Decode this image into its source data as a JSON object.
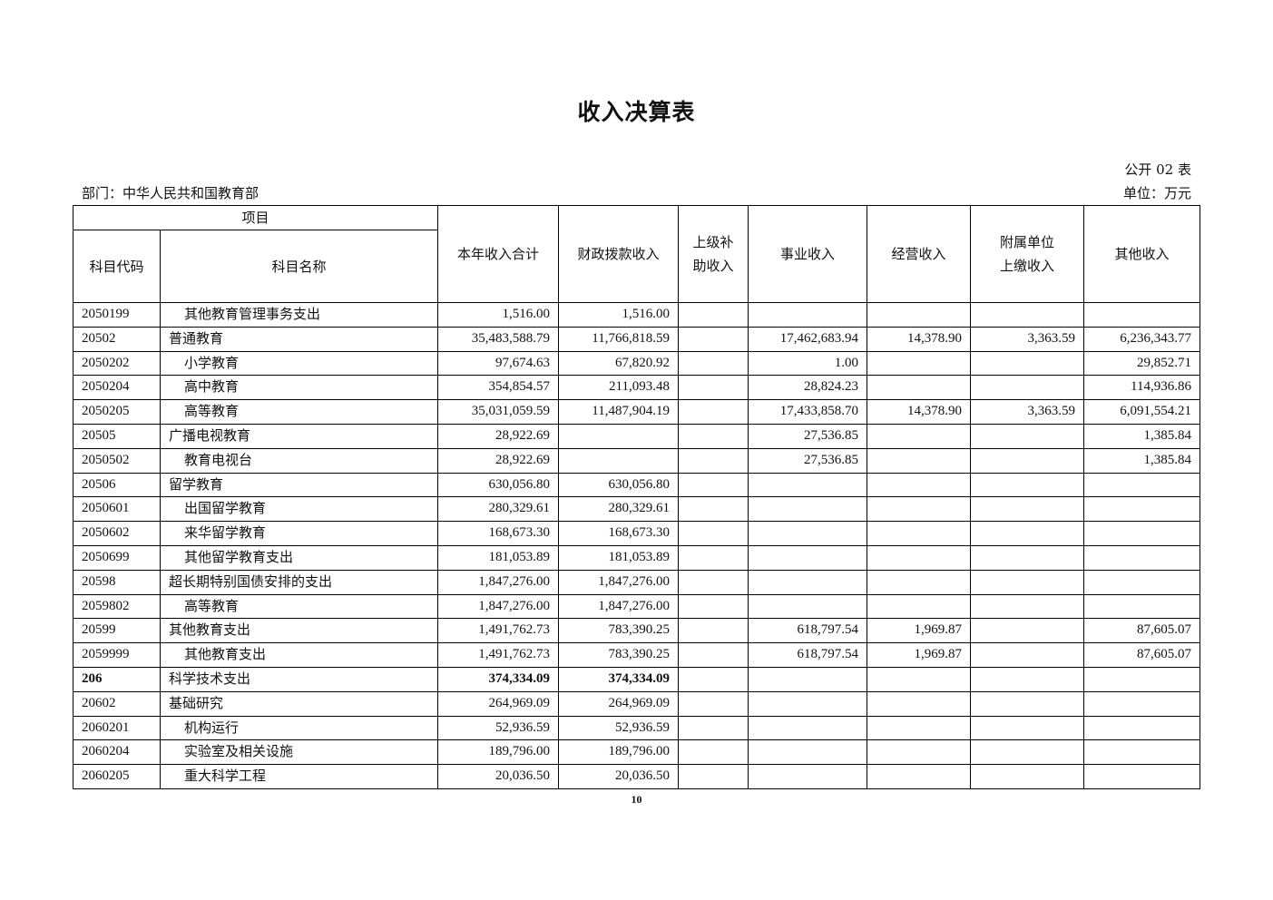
{
  "title": "收入决算表",
  "form_no": "公开 02 表",
  "department": "部门：中华人民共和国教育部",
  "unit": "单位：万元",
  "header": {
    "item": "项目",
    "code": "科目代码",
    "name": "科目名称",
    "total": "本年收入合计",
    "fiscal": "财政拨款收入",
    "superior": "上级补\n助收入",
    "business": "事业收入",
    "operating": "经营收入",
    "affiliated": "附属单位\n上缴收入",
    "other": "其他收入"
  },
  "rows": [
    [
      "2050199",
      "其他教育管理事务支出",
      "1,516.00",
      "1,516.00",
      "",
      "",
      "",
      "",
      ""
    ],
    [
      "20502",
      "普通教育",
      "35,483,588.79",
      "11,766,818.59",
      "",
      "17,462,683.94",
      "14,378.90",
      "3,363.59",
      "6,236,343.77"
    ],
    [
      "2050202",
      "小学教育",
      "97,674.63",
      "67,820.92",
      "",
      "1.00",
      "",
      "",
      "29,852.71"
    ],
    [
      "2050204",
      "高中教育",
      "354,854.57",
      "211,093.48",
      "",
      "28,824.23",
      "",
      "",
      "114,936.86"
    ],
    [
      "2050205",
      "高等教育",
      "35,031,059.59",
      "11,487,904.19",
      "",
      "17,433,858.70",
      "14,378.90",
      "3,363.59",
      "6,091,554.21"
    ],
    [
      "20505",
      "广播电视教育",
      "28,922.69",
      "",
      "",
      "27,536.85",
      "",
      "",
      "1,385.84"
    ],
    [
      "2050502",
      "教育电视台",
      "28,922.69",
      "",
      "",
      "27,536.85",
      "",
      "",
      "1,385.84"
    ],
    [
      "20506",
      "留学教育",
      "630,056.80",
      "630,056.80",
      "",
      "",
      "",
      "",
      ""
    ],
    [
      "2050601",
      "出国留学教育",
      "280,329.61",
      "280,329.61",
      "",
      "",
      "",
      "",
      ""
    ],
    [
      "2050602",
      "来华留学教育",
      "168,673.30",
      "168,673.30",
      "",
      "",
      "",
      "",
      ""
    ],
    [
      "2050699",
      "其他留学教育支出",
      "181,053.89",
      "181,053.89",
      "",
      "",
      "",
      "",
      ""
    ],
    [
      "20598",
      "超长期特别国债安排的支出",
      "1,847,276.00",
      "1,847,276.00",
      "",
      "",
      "",
      "",
      ""
    ],
    [
      "2059802",
      "高等教育",
      "1,847,276.00",
      "1,847,276.00",
      "",
      "",
      "",
      "",
      ""
    ],
    [
      "20599",
      "其他教育支出",
      "1,491,762.73",
      "783,390.25",
      "",
      "618,797.54",
      "1,969.87",
      "",
      "87,605.07"
    ],
    [
      "2059999",
      "其他教育支出",
      "1,491,762.73",
      "783,390.25",
      "",
      "618,797.54",
      "1,969.87",
      "",
      "87,605.07"
    ],
    [
      "206",
      "科学技术支出",
      "374,334.09",
      "374,334.09",
      "",
      "",
      "",
      "",
      ""
    ],
    [
      "20602",
      "基础研究",
      "264,969.09",
      "264,969.09",
      "",
      "",
      "",
      "",
      ""
    ],
    [
      "2060201",
      "机构运行",
      "52,936.59",
      "52,936.59",
      "",
      "",
      "",
      "",
      ""
    ],
    [
      "2060204",
      "实验室及相关设施",
      "189,796.00",
      "189,796.00",
      "",
      "",
      "",
      "",
      ""
    ],
    [
      "2060205",
      "重大科学工程",
      "20,036.50",
      "20,036.50",
      "",
      "",
      "",
      "",
      ""
    ]
  ],
  "page_number": "10"
}
